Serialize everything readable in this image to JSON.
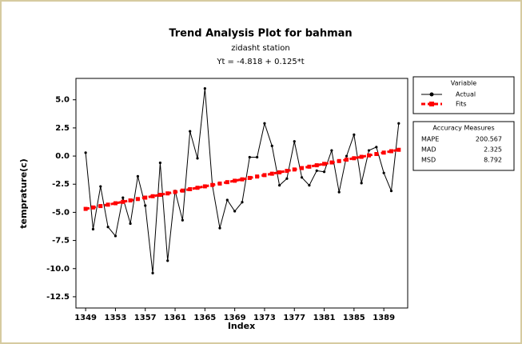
{
  "chart_data": {
    "type": "line",
    "title": "Trend Analysis Plot for bahman",
    "subtitle": "zidasht station",
    "equation": "Yt = -4.818 + 0.125*t",
    "x_label": "Index",
    "y_label": "temprature(c)",
    "x": [
      1349,
      1350,
      1351,
      1352,
      1353,
      1354,
      1355,
      1356,
      1357,
      1358,
      1359,
      1360,
      1361,
      1362,
      1363,
      1364,
      1365,
      1366,
      1367,
      1368,
      1369,
      1370,
      1371,
      1372,
      1373,
      1374,
      1375,
      1376,
      1377,
      1378,
      1379,
      1380,
      1381,
      1382,
      1383,
      1384,
      1385,
      1386,
      1387,
      1388,
      1389,
      1390,
      1391
    ],
    "series": [
      {
        "name": "Actual",
        "color": "#000000",
        "marker": "circle",
        "dashed": false,
        "values": [
          0.3,
          -6.5,
          -2.7,
          -6.3,
          -7.1,
          -3.7,
          -6.0,
          -1.8,
          -4.4,
          -10.4,
          -0.6,
          -9.3,
          -3.1,
          -5.7,
          2.2,
          -0.2,
          6.0,
          -2.6,
          -6.4,
          -3.9,
          -4.9,
          -4.1,
          -0.1,
          -0.1,
          2.9,
          0.9,
          -2.6,
          -2.0,
          1.3,
          -1.9,
          -2.6,
          -1.3,
          -1.4,
          0.5,
          -3.2,
          0.0,
          1.9,
          -2.4,
          0.5,
          0.8,
          -1.5,
          -3.1,
          2.9
        ]
      },
      {
        "name": "Fits",
        "color": "#ff0000",
        "marker": "square",
        "dashed": true,
        "values": [
          -4.693,
          -4.568,
          -4.443,
          -4.318,
          -4.193,
          -4.068,
          -3.943,
          -3.818,
          -3.693,
          -3.568,
          -3.443,
          -3.318,
          -3.193,
          -3.068,
          -2.943,
          -2.818,
          -2.693,
          -2.568,
          -2.443,
          -2.318,
          -2.193,
          -2.068,
          -1.943,
          -1.818,
          -1.693,
          -1.568,
          -1.443,
          -1.318,
          -1.193,
          -1.068,
          -0.943,
          -0.818,
          -0.693,
          -0.568,
          -0.443,
          -0.318,
          -0.193,
          -0.068,
          0.057,
          0.182,
          0.307,
          0.432,
          0.557
        ]
      }
    ],
    "xlim": [
      1347.7,
      1392.2
    ],
    "ylim": [
      -13.5,
      6.9
    ],
    "xticks": [
      1349,
      1353,
      1357,
      1361,
      1365,
      1369,
      1373,
      1377,
      1381,
      1385,
      1389
    ],
    "yticks": [
      {
        "value": 5,
        "label": "5.0"
      },
      2.5,
      {
        "value": 0,
        "label": "0.0"
      },
      -2.5,
      {
        "value": -5,
        "label": "-5.0"
      },
      -7.5,
      {
        "value": -10,
        "label": "-10.0"
      },
      -12.5
    ],
    "legend_title": "Variable",
    "accuracy": {
      "title": "Accuracy Measures",
      "rows": [
        {
          "name": "MAPE",
          "value": 200.567
        },
        {
          "name": "MAD",
          "value": 2.325
        },
        {
          "name": "MSD",
          "value": 8.792
        }
      ]
    }
  }
}
